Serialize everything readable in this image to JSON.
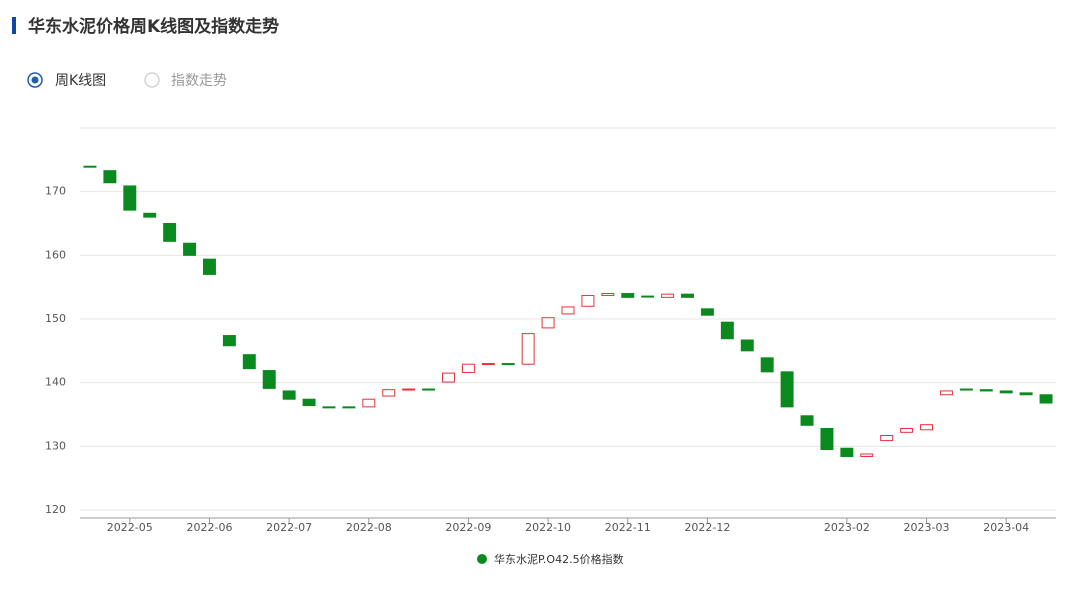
{
  "header": {
    "title": "华东水泥价格周K线图及指数走势"
  },
  "tabs": [
    "周K线图",
    "指数走势"
  ],
  "chart_data": {
    "type": "candlestick",
    "categories": [
      null,
      null,
      "2022-05",
      null,
      null,
      null,
      "2022-06",
      null,
      null,
      null,
      "2022-07",
      null,
      null,
      null,
      "2022-08",
      null,
      null,
      null,
      null,
      "2022-09",
      null,
      null,
      null,
      "2022-10",
      null,
      null,
      null,
      "2022-11",
      null,
      null,
      null,
      "2022-12",
      null,
      null,
      null,
      null,
      null,
      null,
      "2023-02",
      null,
      null,
      null,
      "2023-03",
      null,
      null,
      null,
      "2023-04",
      null,
      null
    ],
    "series": [
      {
        "name": "华东水泥P.O42.5价格指数",
        "color": "#0a8a1e",
        "open": [
          174.0,
          173.3,
          170.9,
          166.6,
          165.0,
          161.9,
          159.4,
          147.4,
          144.4,
          141.9,
          138.7,
          137.4,
          136.2,
          136.2,
          136.2,
          137.9,
          138.9,
          139.0,
          140.1,
          141.6,
          142.9,
          143.0,
          142.9,
          148.6,
          150.8,
          152.0,
          153.7,
          154.0,
          153.6,
          153.4,
          153.9,
          151.6,
          149.5,
          146.7,
          143.9,
          141.7,
          134.8,
          132.8,
          129.7,
          128.4,
          130.9,
          132.2,
          132.6,
          138.1,
          139.0,
          138.9,
          138.7,
          138.4,
          138.1
        ],
        "close": [
          174.0,
          171.4,
          167.1,
          166.0,
          162.2,
          160.0,
          157.0,
          145.8,
          142.2,
          139.1,
          137.4,
          136.4,
          136.2,
          136.2,
          137.4,
          138.9,
          139.0,
          138.9,
          141.5,
          142.9,
          143.0,
          142.9,
          147.7,
          150.2,
          151.9,
          153.7,
          154.0,
          153.4,
          153.5,
          153.9,
          153.4,
          150.6,
          146.9,
          145.0,
          141.7,
          136.2,
          133.3,
          129.5,
          128.4,
          128.8,
          131.7,
          132.8,
          133.4,
          138.7,
          138.9,
          138.7,
          138.4,
          138.1,
          136.8
        ]
      }
    ],
    "up_color": "#e5323a",
    "down_color": "#0a8a1e",
    "ylim": [
      120,
      180
    ],
    "yticks": [
      120,
      130,
      140,
      150,
      160,
      170
    ],
    "grid": true
  }
}
